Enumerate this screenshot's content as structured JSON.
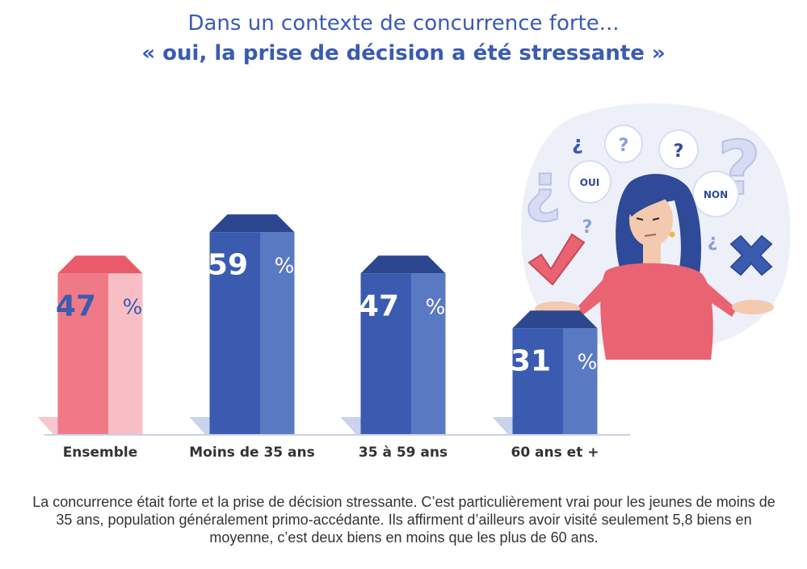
{
  "header": {
    "line1": "Dans un contexte de concurrence forte...",
    "line2": "« oui, la prise de décision a été stressante »"
  },
  "chart_data": {
    "type": "bar",
    "title": "Dans un contexte de concurrence forte... « oui, la prise de décision a été stressante »",
    "categories": [
      "Ensemble",
      "Moins de 35 ans",
      "35 à 59 ans",
      "60 ans et +"
    ],
    "values": [
      47,
      59,
      47,
      31
    ],
    "value_labels": [
      "47",
      "59",
      "47",
      "31"
    ],
    "unit": "%",
    "xlabel": "",
    "ylabel": "",
    "ylim": [
      0,
      100
    ],
    "colors": [
      "#ef7a86",
      "#3a5bb0",
      "#3a5bb0",
      "#3a5bb0"
    ]
  },
  "illustration": {
    "bubble_oui": "OUI",
    "bubble_non": "NON",
    "question_mark": "?",
    "inverted_question_mark": "¿"
  },
  "caption": "La concurrence était forte et la prise de décision stressante. C’est particulièrement vrai pour les jeunes de moins de 35 ans, population généralement primo-accédante. Ils affirment d’ailleurs avoir visité seulement 5,8 biens en moyenne, c’est deux biens en moins que les plus de 60 ans."
}
